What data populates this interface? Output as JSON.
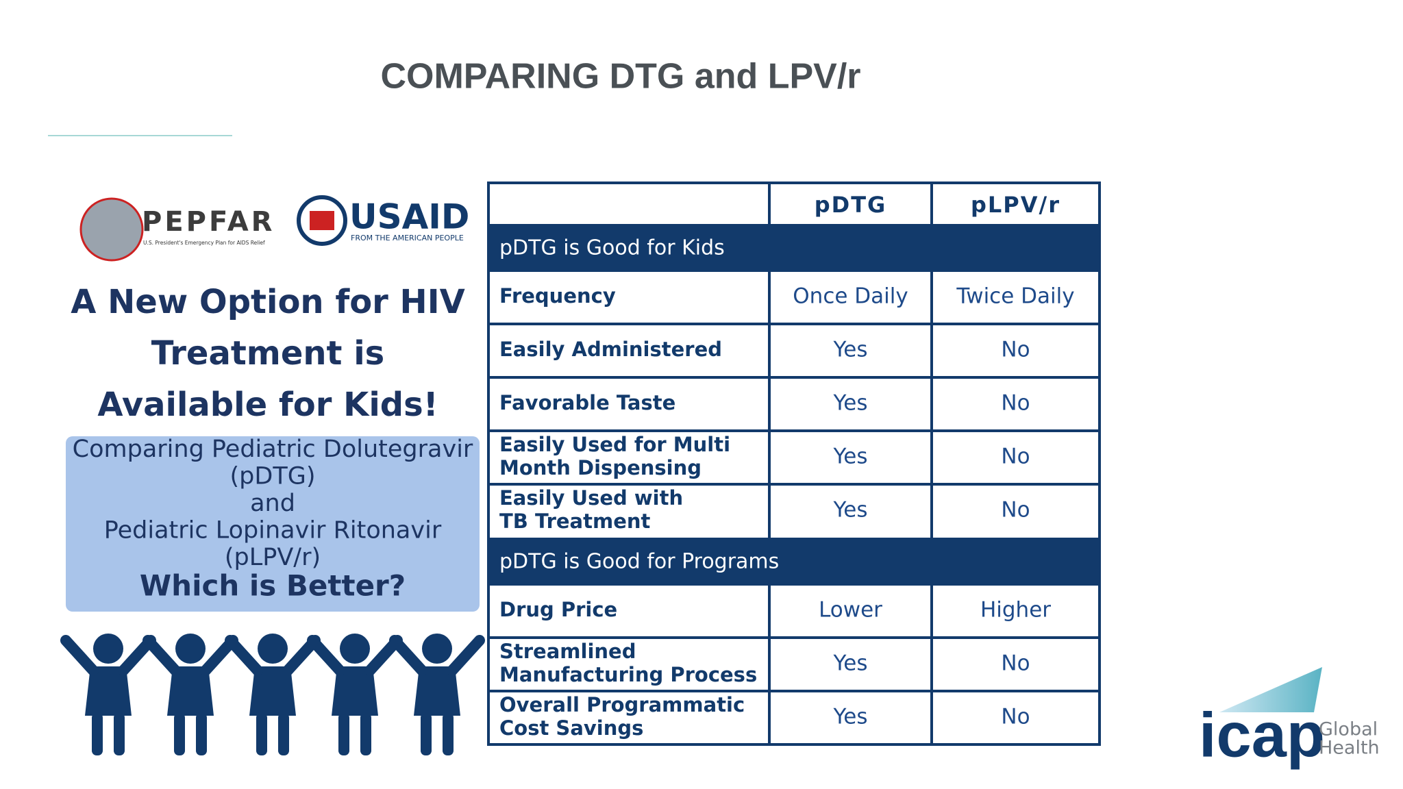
{
  "title": "COMPARING DTG and LPV/r",
  "logos": {
    "pepfar": "PEPFAR",
    "pepfar_sub": "U.S. President's Emergency Plan for AIDS Relief",
    "usaid": "USAID",
    "usaid_sub": "FROM THE AMERICAN PEOPLE"
  },
  "left": {
    "headline": [
      "A New Option for HIV",
      "Treatment is",
      "Available for Kids!"
    ],
    "box": [
      "Comparing Pediatric Dolutegravir",
      "(pDTG)",
      "and",
      "Pediatric Lopinavir Ritonavir",
      "(pLPV/r)"
    ],
    "question": "Which is Better?"
  },
  "table": {
    "columns": [
      "pDTG",
      "pLPV/r"
    ],
    "sections": [
      {
        "title": "pDTG is Good for Kids",
        "rows": [
          {
            "label": [
              "Frequency"
            ],
            "values": [
              "Once Daily",
              "Twice Daily"
            ]
          },
          {
            "label": [
              "Easily Administered"
            ],
            "values": [
              "Yes",
              "No"
            ]
          },
          {
            "label": [
              "Favorable Taste"
            ],
            "values": [
              "Yes",
              "No"
            ]
          },
          {
            "label": [
              "Easily Used for Multi",
              "Month Dispensing"
            ],
            "values": [
              "Yes",
              "No"
            ]
          },
          {
            "label": [
              "Easily Used with",
              "TB Treatment"
            ],
            "values": [
              "Yes",
              "No"
            ]
          }
        ]
      },
      {
        "title": "pDTG is Good for Programs",
        "rows": [
          {
            "label": [
              "Drug Price"
            ],
            "values": [
              "Lower",
              "Higher"
            ]
          },
          {
            "label": [
              "Streamlined",
              "Manufacturing Process"
            ],
            "values": [
              "Yes",
              "No"
            ]
          },
          {
            "label": [
              "Overall Programmatic",
              "Cost Savings"
            ],
            "values": [
              "Yes",
              "No"
            ]
          }
        ]
      }
    ]
  },
  "footer": {
    "logo": "icap",
    "tagline": [
      "Global",
      "Health"
    ]
  }
}
